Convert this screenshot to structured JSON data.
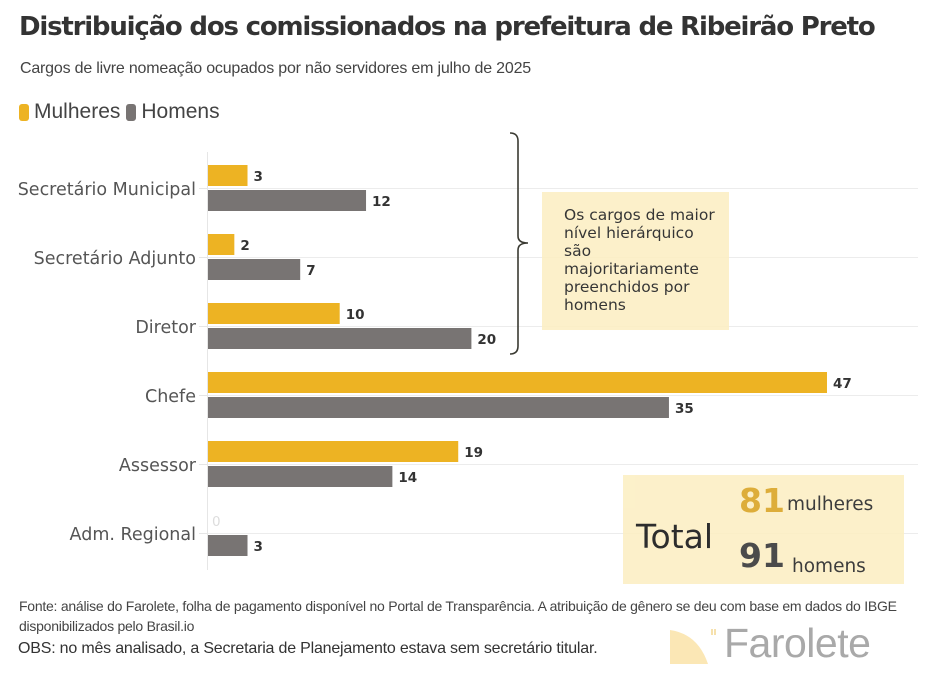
{
  "header": {
    "title": "Distribuição dos comissionados na prefeitura de Ribeirão Preto",
    "subtitle": "Cargos de livre nomeação ocupados por não  servidores em julho de 2025"
  },
  "legend": [
    {
      "label": "Mulheres",
      "color": "#EDB323"
    },
    {
      "label": "Homens",
      "color": "#787473"
    }
  ],
  "chart_data": {
    "type": "bar",
    "orientation": "horizontal",
    "title": "Distribuição dos comissionados na prefeitura de Ribeirão Preto",
    "subtitle": "Cargos de livre nomeação ocupados por não  servidores em julho de 2025",
    "categories": [
      "Secretário Municipal",
      "Secretário Adjunto",
      "Diretor",
      "Chefe",
      "Assessor",
      "Adm. Regional"
    ],
    "series": [
      {
        "name": "Mulheres",
        "color": "#EDB323",
        "values": [
          3,
          2,
          10,
          47,
          19,
          0
        ]
      },
      {
        "name": "Homens",
        "color": "#787473",
        "values": [
          12,
          7,
          20,
          35,
          14,
          3
        ]
      }
    ],
    "xlabel": "",
    "ylabel": "",
    "xlim": [
      0,
      54
    ],
    "grid": true,
    "legend_position": "top-left",
    "data_labels": true
  },
  "annotations": {
    "bracket_note": "Os cargos de maior nível hierárquico são majoritariamente preenchidos por homens",
    "total": {
      "label": "Total",
      "women_count": "81",
      "women_word": "mulheres",
      "men_count": "91",
      "men_word": "homens",
      "women_color": "#D9A21F",
      "men_color": "#333333"
    }
  },
  "footer": {
    "source": "Fonte: análise do Farolete, folha de pagamento disponível no Portal de Transparência. A atribuição de gênero se deu com base em dados do IBGE disponibilizados pelo Brasil.io",
    "obs": "OBS: no mês analisado, a Secretaria de Planejamento estava sem secretário titular.",
    "logo_text": "Farolete"
  }
}
